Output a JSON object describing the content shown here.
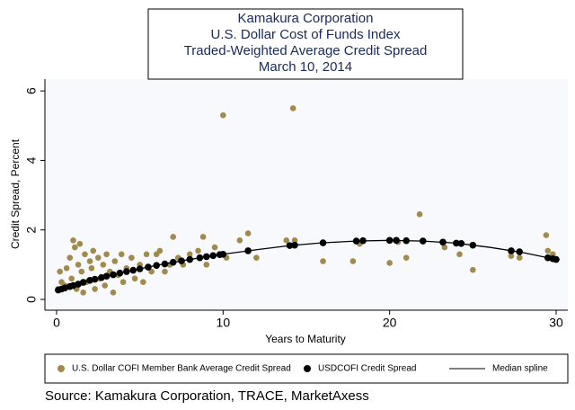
{
  "chart_data": {
    "type": "scatter",
    "title_lines": [
      "Kamakura Corporation",
      "U.S. Dollar Cost of Funds Index",
      "Traded-Weighted Average Credit Spread",
      "March 10, 2014"
    ],
    "xlabel": "Years to Maturity",
    "ylabel": "Credit Spread, Percent",
    "source": "Source: Kamakura Corporation, TRACE, MarketAxess",
    "xlim": [
      -0.7,
      30.7
    ],
    "ylim": [
      -0.31,
      6.34
    ],
    "xticks": [
      0,
      10,
      20,
      30
    ],
    "yticks": [
      0,
      2,
      4,
      6
    ],
    "series": [
      {
        "name": "U.S. Dollar COFI Member Bank Average Credit Spread",
        "color": "#a08a4c",
        "kind": "dot",
        "x": [
          0.1,
          0.2,
          0.3,
          0.5,
          0.6,
          0.8,
          0.9,
          1.0,
          1.1,
          1.2,
          1.3,
          1.4,
          1.5,
          1.6,
          1.7,
          1.8,
          2.0,
          2.1,
          2.2,
          2.3,
          2.5,
          2.6,
          2.8,
          2.9,
          3.0,
          3.2,
          3.4,
          3.5,
          3.7,
          3.9,
          4.0,
          4.2,
          4.5,
          4.7,
          5.0,
          5.2,
          5.4,
          5.7,
          6.0,
          6.2,
          6.5,
          6.8,
          7.0,
          7.3,
          7.6,
          8.0,
          8.5,
          8.8,
          9.0,
          9.5,
          10.0,
          10.2,
          11.0,
          11.5,
          12.0,
          13.8,
          14.2,
          14.3,
          16.0,
          17.8,
          18.2,
          20.0,
          20.5,
          21.0,
          21.8,
          23.3,
          24.2,
          25.0,
          27.3,
          27.8,
          29.4,
          29.5,
          29.8
        ],
        "values": [
          0.3,
          0.8,
          0.5,
          0.4,
          0.9,
          1.2,
          0.6,
          1.7,
          1.5,
          0.3,
          1.0,
          1.6,
          0.8,
          0.2,
          1.3,
          0.5,
          1.1,
          0.9,
          1.4,
          0.3,
          1.2,
          0.6,
          1.0,
          0.4,
          1.3,
          0.8,
          0.2,
          1.1,
          0.7,
          1.3,
          0.5,
          0.9,
          1.2,
          0.6,
          1.0,
          0.5,
          1.3,
          0.8,
          1.3,
          1.4,
          0.8,
          1.0,
          1.8,
          1.2,
          1.0,
          1.3,
          1.4,
          1.8,
          1.0,
          1.5,
          5.3,
          1.2,
          1.7,
          1.9,
          1.2,
          1.7,
          5.5,
          1.7,
          1.1,
          1.1,
          1.6,
          1.05,
          1.65,
          1.2,
          2.45,
          1.5,
          1.3,
          0.85,
          1.25,
          1.2,
          1.85,
          1.4,
          1.3
        ]
      },
      {
        "name": "USDCOFI Credit Spread",
        "color": "#000000",
        "kind": "dot",
        "x": [
          0.1,
          0.3,
          0.5,
          0.8,
          1.0,
          1.3,
          1.6,
          2.0,
          2.3,
          2.7,
          3.0,
          3.4,
          3.8,
          4.2,
          4.6,
          5.0,
          5.5,
          6.0,
          6.5,
          7.0,
          7.5,
          8.0,
          8.6,
          9.0,
          9.4,
          9.8,
          10.0,
          11.5,
          14.0,
          14.3,
          16.0,
          18.0,
          18.4,
          20.0,
          20.4,
          21.0,
          22.0,
          23.2,
          24.0,
          24.3,
          25.0,
          27.3,
          27.8,
          29.5,
          29.8,
          30.0
        ],
        "values": [
          0.27,
          0.3,
          0.33,
          0.37,
          0.4,
          0.44,
          0.49,
          0.55,
          0.58,
          0.63,
          0.67,
          0.71,
          0.76,
          0.8,
          0.84,
          0.88,
          0.93,
          0.98,
          1.02,
          1.07,
          1.11,
          1.15,
          1.2,
          1.23,
          1.26,
          1.29,
          1.3,
          1.4,
          1.55,
          1.56,
          1.63,
          1.68,
          1.69,
          1.7,
          1.7,
          1.69,
          1.68,
          1.65,
          1.62,
          1.61,
          1.56,
          1.4,
          1.37,
          1.2,
          1.17,
          1.15
        ]
      },
      {
        "name": "Median spline",
        "color": "#000000",
        "kind": "line",
        "x": [
          0,
          2,
          4,
          6,
          8,
          10,
          12,
          14,
          16,
          18,
          20,
          22,
          24,
          26,
          28,
          30
        ],
        "values": [
          0.25,
          0.55,
          0.78,
          0.98,
          1.15,
          1.3,
          1.43,
          1.55,
          1.63,
          1.68,
          1.7,
          1.68,
          1.62,
          1.5,
          1.35,
          1.15
        ]
      }
    ]
  }
}
